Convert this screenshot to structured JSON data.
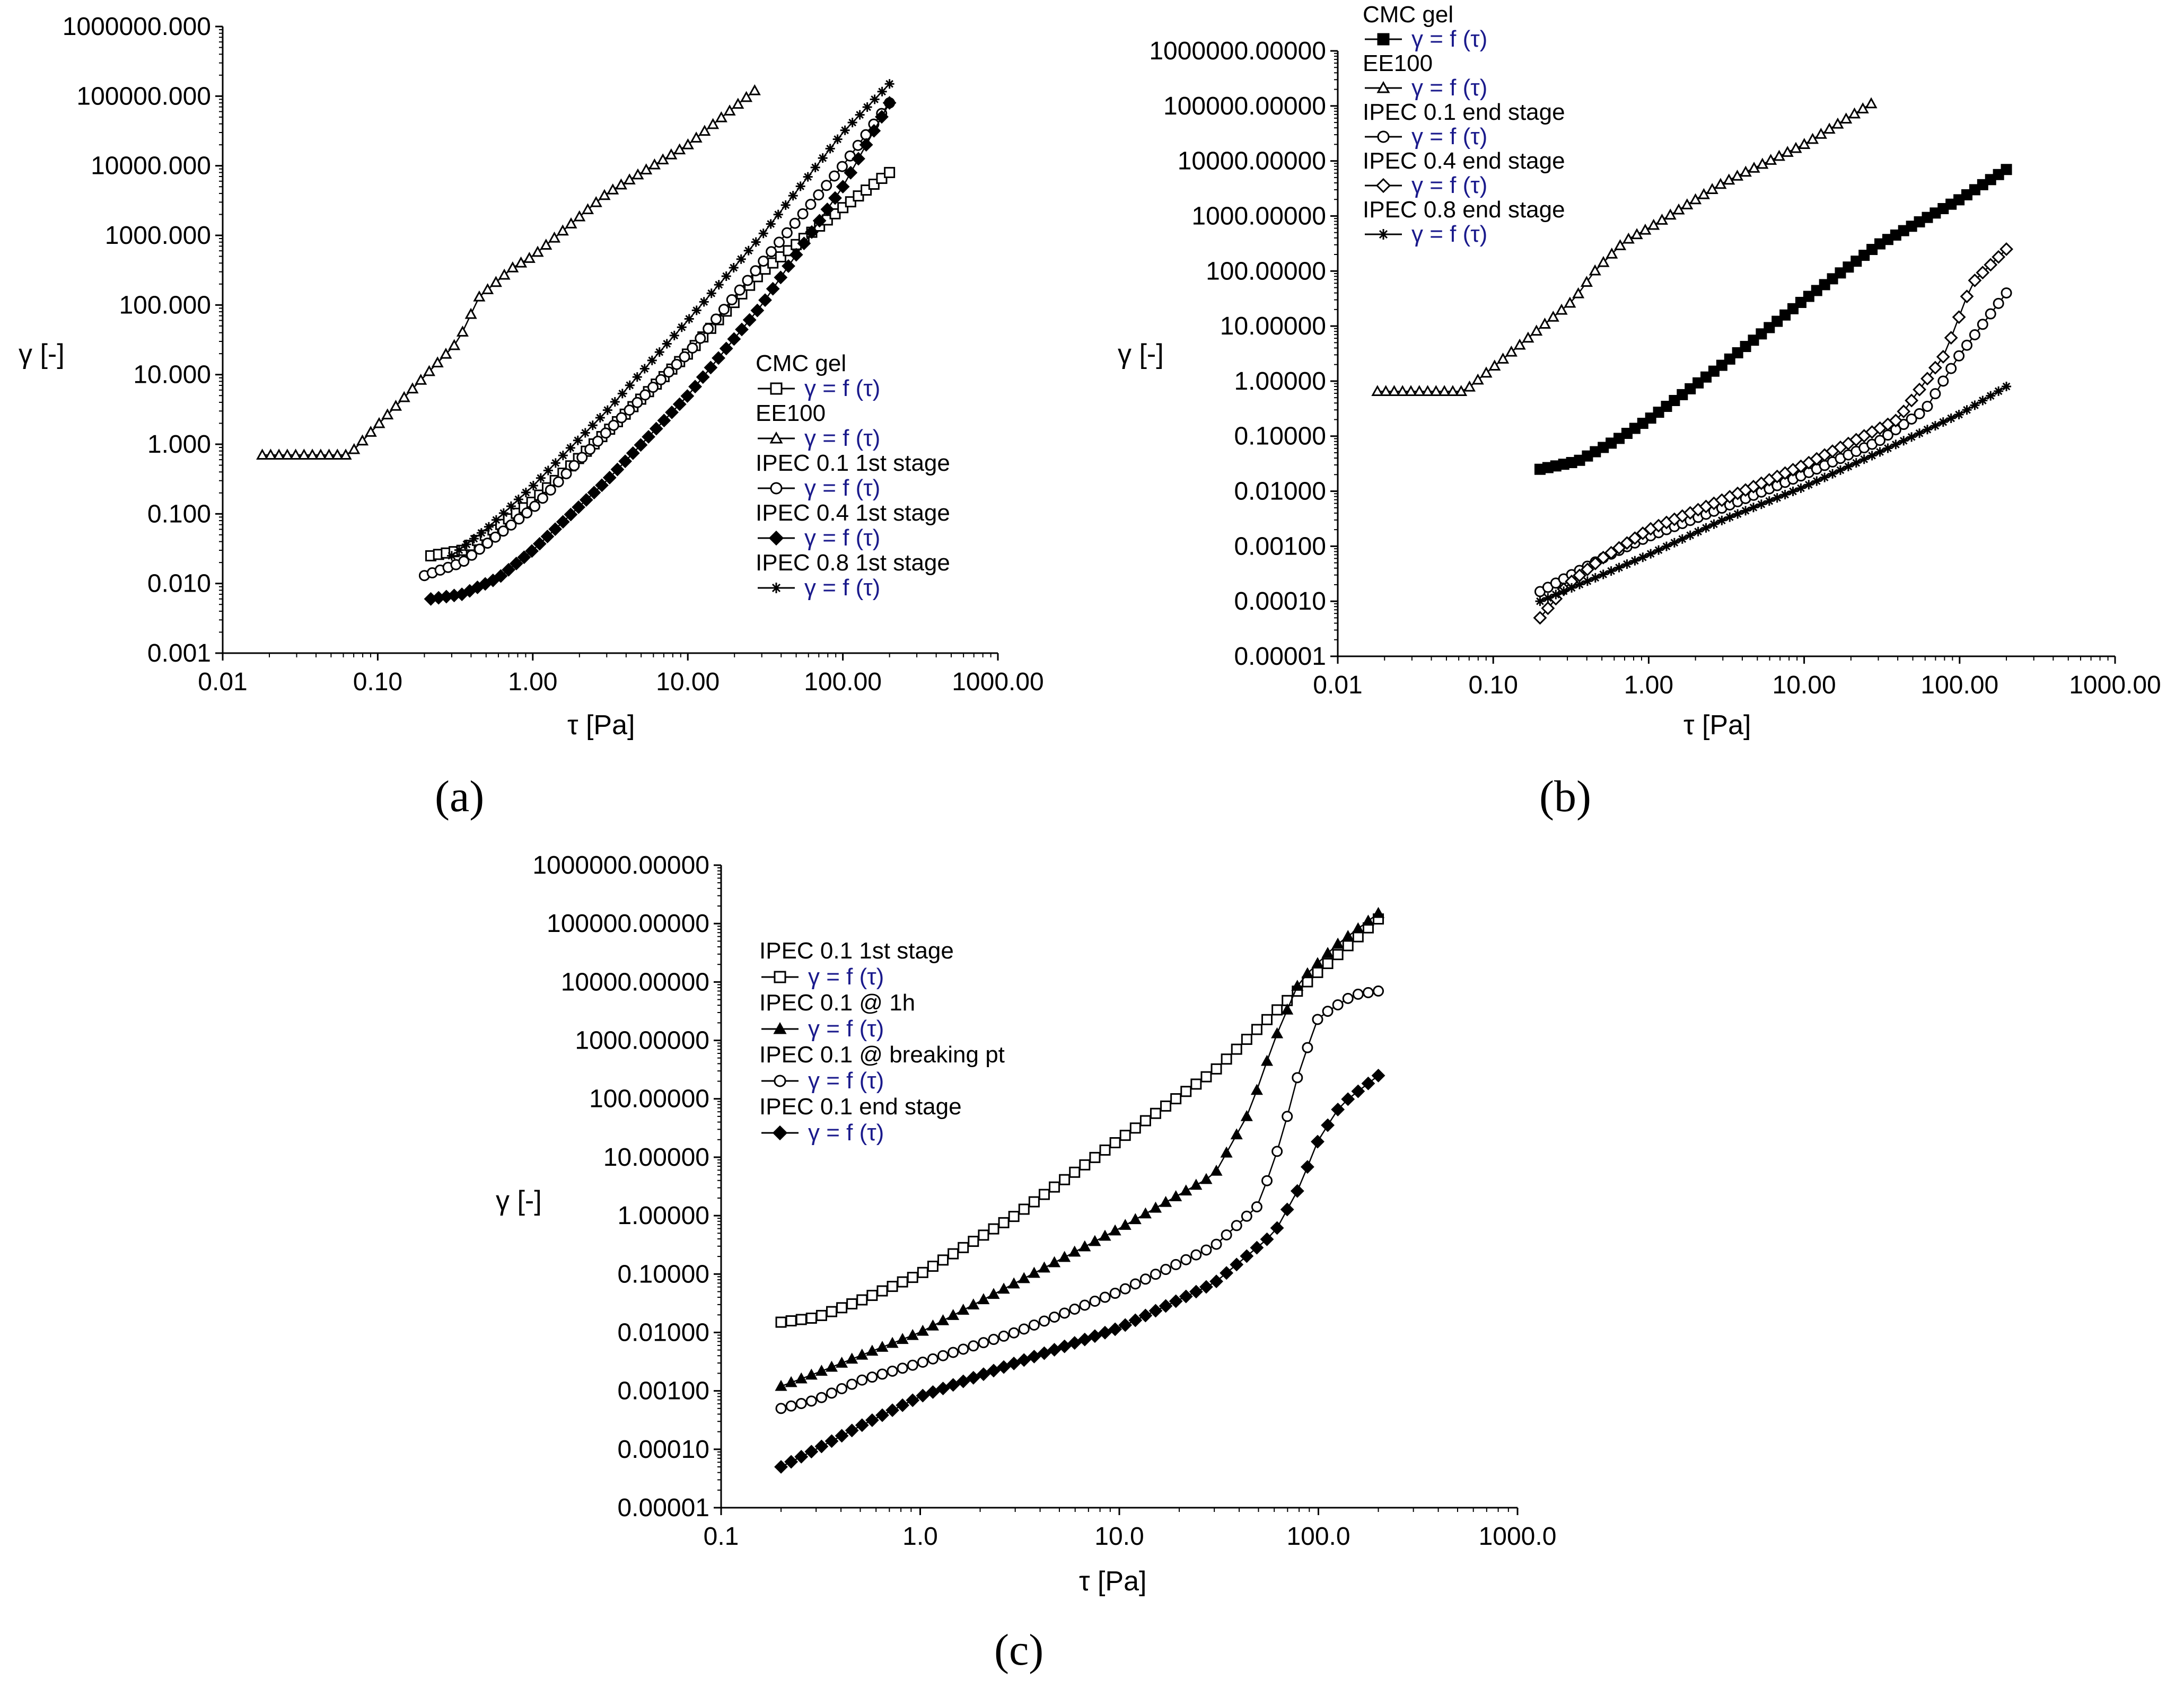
{
  "chart_data": [
    {
      "id": "a",
      "type": "scatter",
      "panel_label": "(a)",
      "xlabel": "τ  [Pa]",
      "ylabel": "γ [-]",
      "xscale": "log",
      "yscale": "log",
      "xlim": [
        0.01,
        1000
      ],
      "ylim": [
        0.001,
        1000000
      ],
      "xticks": [
        "0.01",
        "0.10",
        "1.00",
        "10.00",
        "100.00",
        "1000.00"
      ],
      "yticks": [
        "0.001",
        "0.010",
        "0.100",
        "1.000",
        "10.000",
        "100.000",
        "1000.000",
        "10000.000",
        "100000.000",
        "1000000.000"
      ],
      "legend_position": "right-middle",
      "series": [
        {
          "name": "CMC gel",
          "formula": "γ = f (τ)",
          "marker": "square-open",
          "points": [
            [
              0.22,
              0.025
            ],
            [
              0.35,
              0.03
            ],
            [
              0.5,
              0.05
            ],
            [
              1,
              0.15
            ],
            [
              3,
              1.5
            ],
            [
              10,
              20
            ],
            [
              30,
              300
            ],
            [
              100,
              2500
            ],
            [
              200,
              8000
            ]
          ]
        },
        {
          "name": "EE100",
          "formula": "γ = f (τ)",
          "marker": "triangle-open",
          "points": [
            [
              0.018,
              0.7
            ],
            [
              0.03,
              0.7
            ],
            [
              0.065,
              0.7
            ],
            [
              0.33,
              30
            ],
            [
              0.45,
              130
            ],
            [
              0.75,
              350
            ],
            [
              1,
              500
            ],
            [
              3,
              4000
            ],
            [
              10,
              20000
            ],
            [
              27,
              120000
            ]
          ]
        },
        {
          "name": "IPEC 0.1 1st stage",
          "formula": "γ = f (τ)",
          "marker": "circle-open",
          "points": [
            [
              0.2,
              0.013
            ],
            [
              0.35,
              0.02
            ],
            [
              0.6,
              0.05
            ],
            [
              1,
              0.12
            ],
            [
              3,
              1.5
            ],
            [
              10,
              20
            ],
            [
              30,
              400
            ],
            [
              100,
              10000
            ],
            [
              200,
              80000
            ]
          ]
        },
        {
          "name": "IPEC 0.4 1st stage",
          "formula": "γ = f (τ)",
          "marker": "diamond-filled",
          "points": [
            [
              0.22,
              0.006
            ],
            [
              0.35,
              0.007
            ],
            [
              0.6,
              0.012
            ],
            [
              1,
              0.03
            ],
            [
              3,
              0.3
            ],
            [
              10,
              5
            ],
            [
              30,
              100
            ],
            [
              100,
              5000
            ],
            [
              200,
              80000
            ]
          ]
        },
        {
          "name": "IPEC 0.8 1st stage",
          "formula": "γ = f (τ)",
          "marker": "asterisk",
          "points": [
            [
              0.3,
              0.025
            ],
            [
              0.5,
              0.06
            ],
            [
              1,
              0.25
            ],
            [
              3,
              3
            ],
            [
              10,
              60
            ],
            [
              30,
              1000
            ],
            [
              100,
              30000
            ],
            [
              200,
              150000
            ]
          ]
        }
      ]
    },
    {
      "id": "b",
      "type": "scatter",
      "panel_label": "(b)",
      "xlabel": "τ  [Pa]",
      "ylabel": "γ [-]",
      "xscale": "log",
      "yscale": "log",
      "xlim": [
        0.01,
        1000
      ],
      "ylim": [
        1e-05,
        1000000
      ],
      "xticks": [
        "0.01",
        "0.10",
        "1.00",
        "10.00",
        "100.00",
        "1000.00"
      ],
      "yticks": [
        "0.00001",
        "0.00010",
        "0.00100",
        "0.01000",
        "0.10000",
        "1.00000",
        "10.00000",
        "100.00000",
        "1000.00000",
        "10000.00000",
        "100000.00000",
        "1000000.00000"
      ],
      "legend_position": "top-left",
      "series": [
        {
          "name": "CMC gel",
          "formula": "γ = f (τ)",
          "marker": "square-filled",
          "points": [
            [
              0.2,
              0.025
            ],
            [
              0.35,
              0.035
            ],
            [
              0.6,
              0.08
            ],
            [
              1,
              0.2
            ],
            [
              3,
              2
            ],
            [
              10,
              30
            ],
            [
              30,
              300
            ],
            [
              100,
              2000
            ],
            [
              200,
              7000
            ]
          ]
        },
        {
          "name": "EE100",
          "formula": "γ = f (τ)",
          "marker": "triangle-open",
          "points": [
            [
              0.018,
              0.65
            ],
            [
              0.03,
              0.65
            ],
            [
              0.065,
              0.65
            ],
            [
              0.33,
              30
            ],
            [
              0.45,
              100
            ],
            [
              0.7,
              350
            ],
            [
              1,
              600
            ],
            [
              3,
              4000
            ],
            [
              10,
              20000
            ],
            [
              27,
              110000
            ]
          ]
        },
        {
          "name": "IPEC 0.1 end stage",
          "formula": "γ = f (τ)",
          "marker": "circle-open",
          "points": [
            [
              0.2,
              0.00015
            ],
            [
              0.5,
              0.0006
            ],
            [
              1,
              0.0015
            ],
            [
              3,
              0.005
            ],
            [
              10,
              0.02
            ],
            [
              30,
              0.08
            ],
            [
              60,
              0.3
            ],
            [
              100,
              3
            ],
            [
              200,
              40
            ]
          ]
        },
        {
          "name": "IPEC 0.4 end stage",
          "formula": "γ = f (τ)",
          "marker": "diamond-open",
          "points": [
            [
              0.2,
              5e-05
            ],
            [
              0.3,
              0.0002
            ],
            [
              0.5,
              0.0006
            ],
            [
              1,
              0.002
            ],
            [
              3,
              0.007
            ],
            [
              10,
              0.03
            ],
            [
              40,
              0.2
            ],
            [
              80,
              3
            ],
            [
              120,
              60
            ],
            [
              200,
              250
            ]
          ]
        },
        {
          "name": "IPEC 0.8 end stage",
          "formula": "γ = f (τ)",
          "marker": "asterisk",
          "points": [
            [
              0.2,
              0.0001
            ],
            [
              0.5,
              0.0003
            ],
            [
              1,
              0.0007
            ],
            [
              3,
              0.003
            ],
            [
              10,
              0.012
            ],
            [
              30,
              0.05
            ],
            [
              100,
              0.25
            ],
            [
              200,
              0.8
            ]
          ]
        }
      ]
    },
    {
      "id": "c",
      "type": "scatter",
      "panel_label": "(c)",
      "xlabel": "τ  [Pa]",
      "ylabel": "γ [-]",
      "xscale": "log",
      "yscale": "log",
      "xlim": [
        0.1,
        1000
      ],
      "ylim": [
        1e-05,
        1000000
      ],
      "xticks": [
        "0.1",
        "1.0",
        "10.0",
        "100.0",
        "1000.0"
      ],
      "yticks": [
        "0.00001",
        "0.00010",
        "0.00100",
        "0.01000",
        "0.10000",
        "1.00000",
        "10.00000",
        "100.00000",
        "1000.00000",
        "10000.00000",
        "100000.00000",
        "1000000.00000"
      ],
      "legend_position": "top-left",
      "series": [
        {
          "name": "IPEC 0.1 1st stage",
          "formula": "γ = f (τ)",
          "marker": "square-open",
          "points": [
            [
              0.2,
              0.015
            ],
            [
              0.3,
              0.018
            ],
            [
              0.5,
              0.035
            ],
            [
              1,
              0.1
            ],
            [
              3,
              1
            ],
            [
              10,
              20
            ],
            [
              30,
              300
            ],
            [
              60,
              3000
            ],
            [
              100,
              15000
            ],
            [
              200,
              120000
            ]
          ]
        },
        {
          "name": "IPEC 0.1 @ 1h",
          "formula": "γ = f (τ)",
          "marker": "triangle-filled",
          "points": [
            [
              0.2,
              0.0012
            ],
            [
              0.3,
              0.002
            ],
            [
              0.5,
              0.004
            ],
            [
              1,
              0.01
            ],
            [
              3,
              0.07
            ],
            [
              10,
              0.6
            ],
            [
              30,
              5
            ],
            [
              45,
              60
            ],
            [
              60,
              1000
            ],
            [
              80,
              10000
            ],
            [
              120,
              40000
            ],
            [
              200,
              150000
            ]
          ]
        },
        {
          "name": "IPEC 0.1 @ breaking pt",
          "formula": "γ = f (τ)",
          "marker": "circle-open",
          "points": [
            [
              0.2,
              0.0005
            ],
            [
              0.3,
              0.0007
            ],
            [
              0.5,
              0.0015
            ],
            [
              1,
              0.003
            ],
            [
              3,
              0.01
            ],
            [
              10,
              0.05
            ],
            [
              30,
              0.3
            ],
            [
              50,
              1.5
            ],
            [
              65,
              20
            ],
            [
              80,
              300
            ],
            [
              100,
              2500
            ],
            [
              150,
              6000
            ],
            [
              200,
              7000
            ]
          ]
        },
        {
          "name": "IPEC 0.1 end stage",
          "formula": "γ = f (τ)",
          "marker": "diamond-filled",
          "points": [
            [
              0.2,
              5e-05
            ],
            [
              0.3,
              0.0001
            ],
            [
              0.5,
              0.00025
            ],
            [
              1,
              0.0008
            ],
            [
              3,
              0.003
            ],
            [
              10,
              0.012
            ],
            [
              30,
              0.07
            ],
            [
              60,
              0.5
            ],
            [
              80,
              3
            ],
            [
              100,
              20
            ],
            [
              130,
              80
            ],
            [
              200,
              250
            ]
          ]
        }
      ]
    }
  ]
}
